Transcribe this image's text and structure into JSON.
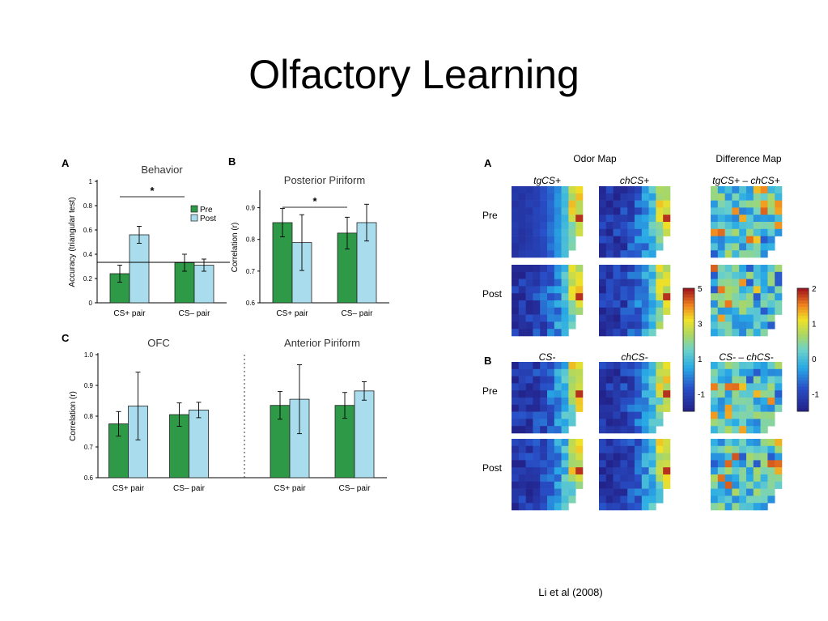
{
  "slide": {
    "title": "Olfactory Learning",
    "citation": "Li et al (2008)"
  },
  "colors": {
    "pre": "#2e9a48",
    "post": "#a9dcec"
  },
  "chart_data": [
    {
      "type": "bar",
      "panel": "A",
      "title": "Behavior",
      "ylabel": "Accuracy (triangular test)",
      "ylim": [
        0,
        1
      ],
      "yticks": [
        "0",
        "0.2",
        "0.4",
        "0.6",
        "0.8",
        "1"
      ],
      "categories": [
        "CS+ pair",
        "CS– pair"
      ],
      "series": [
        {
          "name": "Pre",
          "values": [
            0.24,
            0.33
          ],
          "errors": [
            0.07,
            0.07
          ]
        },
        {
          "name": "Post",
          "values": [
            0.56,
            0.31
          ],
          "errors": [
            0.07,
            0.05
          ]
        }
      ],
      "chance_line": 0.333,
      "significance": "*",
      "legend": "top-right"
    },
    {
      "type": "bar",
      "panel": "B",
      "title": "Posterior Piriform",
      "ylabel": "Correlation (r)",
      "ylim": [
        0.6,
        0.95
      ],
      "yticks": [
        "0.6",
        "0.7",
        "0.8",
        "0.9"
      ],
      "categories": [
        "CS+ pair",
        "CS– pair"
      ],
      "series": [
        {
          "name": "Pre",
          "values": [
            0.853,
            0.82
          ],
          "errors": [
            0.045,
            0.05
          ]
        },
        {
          "name": "Post",
          "values": [
            0.79,
            0.853
          ],
          "errors": [
            0.088,
            0.058
          ]
        }
      ],
      "significance": "*"
    },
    {
      "type": "bar",
      "panel": "C",
      "title": "OFC",
      "ylabel": "Correlation (r)",
      "ylim": [
        0.6,
        1.0
      ],
      "yticks": [
        "0.6",
        "0.7",
        "0.8",
        "0.9",
        "1.0"
      ],
      "categories": [
        "CS+ pair",
        "CS– pair"
      ],
      "series": [
        {
          "name": "Pre",
          "values": [
            0.775,
            0.805
          ],
          "errors": [
            0.04,
            0.038
          ]
        },
        {
          "name": "Post",
          "values": [
            0.833,
            0.82
          ],
          "errors": [
            0.11,
            0.025
          ]
        }
      ]
    },
    {
      "type": "bar",
      "panel": "C",
      "title": "Anterior Piriform",
      "ylim": [
        0.6,
        1.0
      ],
      "categories": [
        "CS+ pair",
        "CS– pair"
      ],
      "series": [
        {
          "name": "Pre",
          "values": [
            0.835,
            0.835
          ],
          "errors": [
            0.045,
            0.042
          ]
        },
        {
          "name": "Post",
          "values": [
            0.855,
            0.882
          ],
          "errors": [
            0.112,
            0.03
          ]
        }
      ]
    },
    {
      "type": "heatmap",
      "panel_labels": [
        "A",
        "B"
      ],
      "group_titles": [
        "Odor Map",
        "Difference Map"
      ],
      "rows": [
        {
          "panel": "A",
          "columns": [
            "tgCS+",
            "chCS+",
            "tgCS+ – chCS+"
          ],
          "row_labels": [
            "Pre",
            "Post"
          ]
        },
        {
          "panel": "B",
          "columns": [
            "CS-",
            "chCS-",
            "CS- – chCS-"
          ],
          "row_labels": [
            "Pre",
            "Post"
          ]
        }
      ],
      "colorbars": [
        {
          "ticks": [
            "5",
            "3",
            "1",
            "-1"
          ],
          "range": [
            -2,
            5
          ]
        },
        {
          "ticks": [
            "2",
            "1",
            "0",
            "-1"
          ],
          "range": [
            -1.5,
            2
          ]
        }
      ]
    }
  ]
}
